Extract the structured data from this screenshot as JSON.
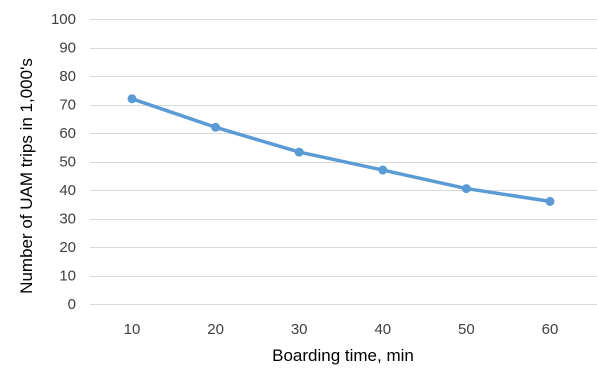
{
  "chart_data": {
    "type": "line",
    "title": "",
    "xlabel": "Boarding time, min",
    "ylabel": "Number of UAM trips in 1,000's",
    "x": [
      10,
      20,
      30,
      40,
      50,
      60
    ],
    "x_tick_labels": [
      "10",
      "20",
      "30",
      "40",
      "50",
      "60"
    ],
    "y_ticks": [
      0,
      10,
      20,
      30,
      40,
      50,
      60,
      70,
      80,
      90,
      100
    ],
    "y_tick_labels": [
      "0",
      "10",
      "20",
      "30",
      "40",
      "50",
      "60",
      "70",
      "80",
      "90",
      "100"
    ],
    "ylim": [
      0,
      100
    ],
    "grid": "horizontal",
    "legend": "none",
    "series": [
      {
        "values": [
          72,
          62,
          53.3,
          47,
          40.5,
          36
        ],
        "color": "#5b9bd5",
        "marker": "circle"
      }
    ]
  }
}
